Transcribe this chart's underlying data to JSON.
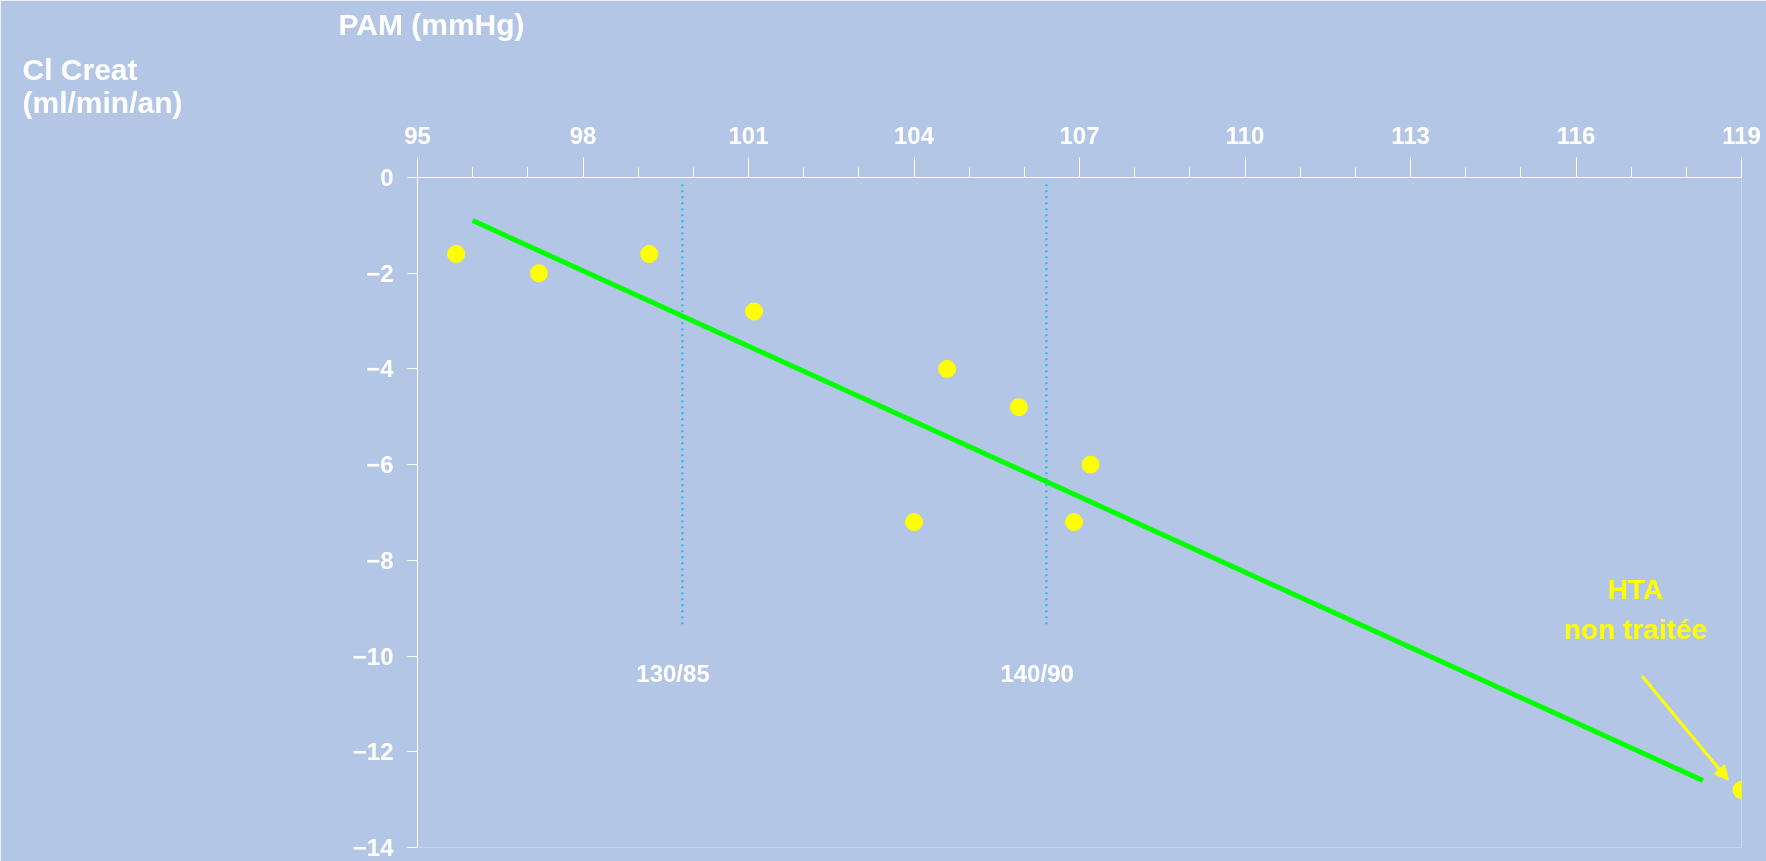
{
  "chart_data": {
    "type": "scatter",
    "xlabel": "PAM (mmHg)",
    "xlim": [
      95,
      119
    ],
    "xticks": [
      95,
      98,
      101,
      104,
      107,
      110,
      113,
      116,
      119
    ],
    "ylim": [
      -14,
      0
    ],
    "yticks": [
      0,
      -2,
      -4,
      -6,
      -8,
      -10,
      -12,
      -14
    ],
    "series": [
      {
        "color": "#ffff00",
        "marker": "circle",
        "x": [
          95.7,
          97.2,
          99.2,
          101.1,
          104.6,
          104.0,
          105.9,
          107.2,
          106.9,
          119.0
        ],
        "values": [
          -1.6,
          -2.0,
          -1.6,
          -2.8,
          -4.0,
          -7.2,
          -4.8,
          -6.0,
          -7.2,
          -12.8
        ]
      },
      {
        "type": "line",
        "color": "#00ff00",
        "x": [
          96.0,
          118.3
        ],
        "values": [
          -0.9,
          -12.6
        ]
      }
    ],
    "ref_lines": [
      {
        "axis": "x",
        "value": 99.8,
        "color": "#33bbee",
        "line_style": "dotted"
      },
      {
        "axis": "x",
        "value": 106.4,
        "color": "#33bbee",
        "line_style": "dotted"
      }
    ],
    "annotations": [
      "130/85",
      "140/90",
      "HTA\nnon traitée",
      "Cl Creat\n(ml/min/an)"
    ],
    "grid": false
  }
}
